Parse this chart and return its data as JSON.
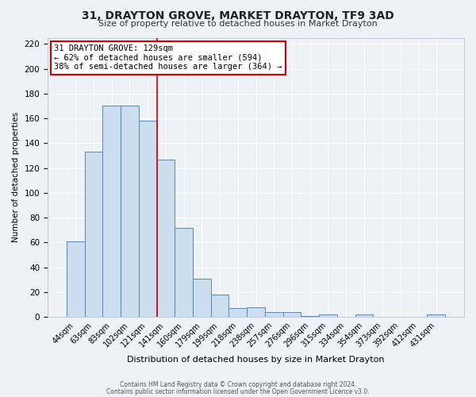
{
  "title": "31, DRAYTON GROVE, MARKET DRAYTON, TF9 3AD",
  "subtitle": "Size of property relative to detached houses in Market Drayton",
  "xlabel": "Distribution of detached houses by size in Market Drayton",
  "ylabel": "Number of detached properties",
  "categories": [
    "44sqm",
    "63sqm",
    "83sqm",
    "102sqm",
    "121sqm",
    "141sqm",
    "160sqm",
    "179sqm",
    "199sqm",
    "218sqm",
    "238sqm",
    "257sqm",
    "276sqm",
    "296sqm",
    "315sqm",
    "334sqm",
    "354sqm",
    "373sqm",
    "392sqm",
    "412sqm",
    "431sqm"
  ],
  "values": [
    61,
    133,
    170,
    170,
    158,
    127,
    72,
    31,
    18,
    7,
    8,
    4,
    4,
    1,
    2,
    0,
    2,
    0,
    0,
    0,
    2
  ],
  "bar_color": "#ccddf0",
  "bar_edge_color": "#5588bb",
  "vline_x": 4.5,
  "vline_color": "#cc0000",
  "annotation_box_text": "31 DRAYTON GROVE: 129sqm\n← 62% of detached houses are smaller (594)\n38% of semi-detached houses are larger (364) →",
  "annotation_box_color": "#cc0000",
  "ylim": [
    0,
    225
  ],
  "yticks": [
    0,
    20,
    40,
    60,
    80,
    100,
    120,
    140,
    160,
    180,
    200,
    220
  ],
  "footer_line1": "Contains HM Land Registry data © Crown copyright and database right 2024.",
  "footer_line2": "Contains public sector information licensed under the Open Government Licence v3.0.",
  "background_color": "#eef2f7",
  "grid_color": "#ffffff"
}
